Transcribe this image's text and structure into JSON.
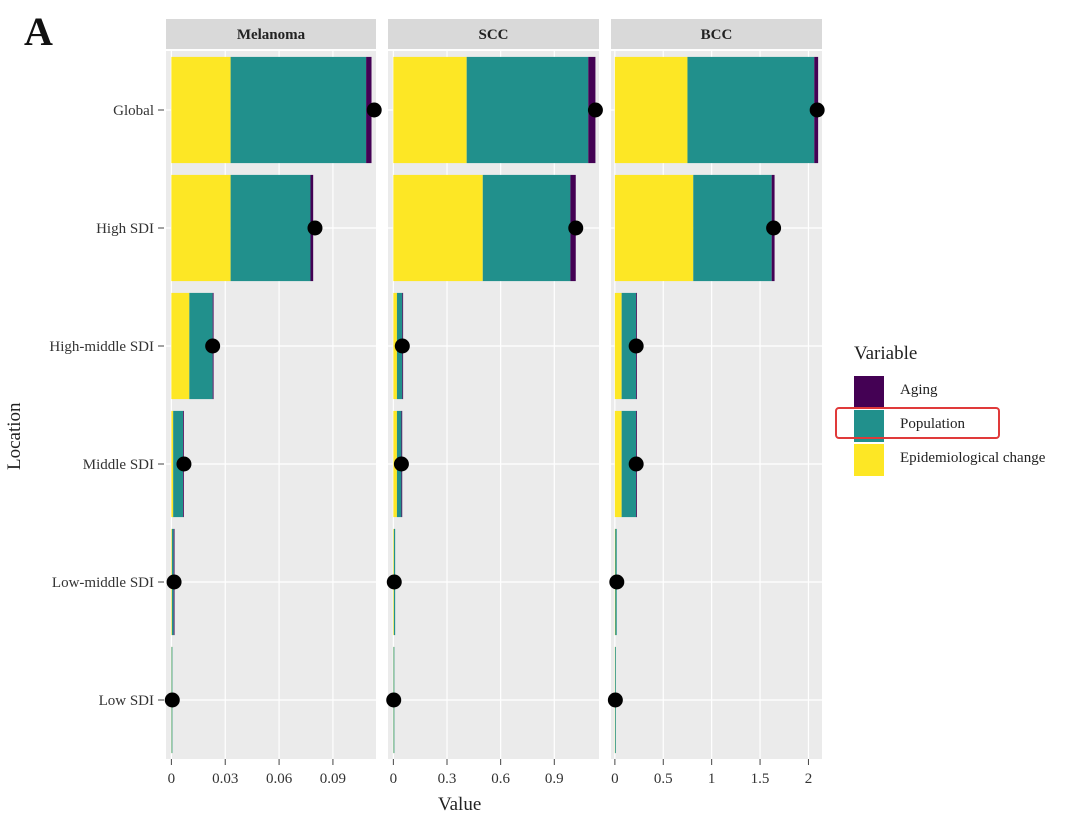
{
  "panel_label": "A",
  "chart_data": {
    "type": "bar",
    "orientation": "horizontal",
    "stacked": true,
    "xlabel": "Value",
    "ylabel": "Location",
    "categories": [
      "Global",
      "High SDI",
      "High-middle SDI",
      "Middle SDI",
      "Low-middle SDI",
      "Low SDI"
    ],
    "legend": {
      "title": "Variable",
      "placement": "right",
      "entries": [
        "Aging",
        "Population",
        "Epidemiological change"
      ],
      "highlighted": "Population"
    },
    "colors": {
      "Aging": "#440154",
      "Population": "#21908c",
      "Epidemiological change": "#fde725",
      "total_marker": "#000000",
      "panel_bg": "#ebebeb",
      "strip_bg": "#d9d9d9",
      "highlight": "#e03a3a"
    },
    "grid": true,
    "facets": [
      {
        "name": "Melanoma",
        "xlim": [
          -0.003,
          0.114
        ],
        "ticks": [
          0,
          0.03,
          0.06,
          0.09
        ],
        "tick_labels": [
          "0",
          "0.03",
          "0.06",
          "0.09"
        ],
        "series": [
          {
            "name": "Epidemiological change",
            "values": [
              0.033,
              0.033,
              0.01,
              0.001,
              0.0003,
              0.0001
            ]
          },
          {
            "name": "Population",
            "values": [
              0.0755,
              0.0445,
              0.013,
              0.0055,
              0.001,
              0.0004
            ]
          },
          {
            "name": "Aging",
            "values": [
              0.003,
              0.0015,
              0.0005,
              0.0002,
              0.0001,
              0.0
            ]
          }
        ],
        "totals": [
          0.113,
          0.08,
          0.023,
          0.007,
          0.0015,
          0.0005
        ]
      },
      {
        "name": "SCC",
        "xlim": [
          -0.03,
          1.15
        ],
        "ticks": [
          0,
          0.3,
          0.6,
          0.9
        ],
        "tick_labels": [
          "0",
          "0.3",
          "0.6",
          "0.9"
        ],
        "series": [
          {
            "name": "Epidemiological change",
            "values": [
              0.41,
              0.5,
              0.02,
              0.02,
              0.003,
              0.001
            ]
          },
          {
            "name": "Population",
            "values": [
              0.68,
              0.49,
              0.03,
              0.025,
              0.007,
              0.003
            ]
          },
          {
            "name": "Aging",
            "values": [
              0.04,
              0.03,
              0.002,
              0.001,
              0.0,
              0.0
            ]
          }
        ],
        "totals": [
          1.13,
          1.02,
          0.05,
          0.045,
          0.005,
          0.002
        ]
      },
      {
        "name": "BCC",
        "xlim": [
          -0.04,
          2.14
        ],
        "ticks": [
          0,
          0.5,
          1,
          1.5,
          2
        ],
        "tick_labels": [
          "0",
          "0.5",
          "1",
          "1.5",
          "2"
        ],
        "series": [
          {
            "name": "Epidemiological change",
            "values": [
              0.75,
              0.81,
              0.07,
              0.07,
              0.004,
              0.001
            ]
          },
          {
            "name": "Population",
            "values": [
              1.31,
              0.81,
              0.15,
              0.15,
              0.015,
              0.004
            ]
          },
          {
            "name": "Aging",
            "values": [
              0.04,
              0.03,
              0.003,
              0.002,
              0.0,
              0.0
            ]
          }
        ],
        "totals": [
          2.09,
          1.64,
          0.22,
          0.22,
          0.02,
          0.005
        ]
      }
    ]
  }
}
